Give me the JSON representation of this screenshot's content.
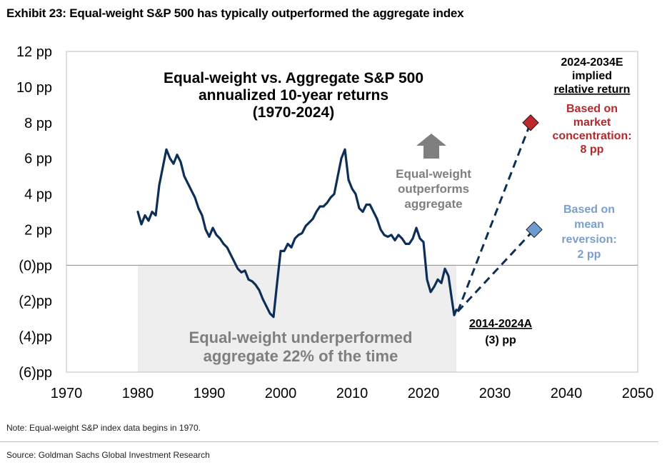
{
  "exhibit_title": "Exhibit 23: Equal-weight S&P 500 has typically outperformed the aggregate index",
  "note": "Note: Equal-weight S&P index data begins in 1970.",
  "source": "Source: Goldman Sachs Global Investment Research",
  "colors": {
    "line": "#0d2f57",
    "underperf_shade": "#eeeeee",
    "market_diamond": "#c0282d",
    "market_text": "#b02a2e",
    "mean_diamond": "#6f9bd1",
    "mean_text": "#7a9fcc",
    "arrow": "#7f7f7f",
    "grey_text": "#7f7f7f"
  },
  "chart_data": {
    "type": "line",
    "title_lines": [
      "Equal-weight vs. Aggregate S&P 500",
      "annualized 10-year returns",
      "(1970-2024)"
    ],
    "xlim": [
      1970,
      2050
    ],
    "ylim": [
      -6,
      12
    ],
    "x_ticks": [
      1970,
      1980,
      1990,
      2000,
      2010,
      2020,
      2030,
      2040,
      2050
    ],
    "y_ticks": [
      {
        "value": 12,
        "label": "12 pp"
      },
      {
        "value": 10,
        "label": "10 pp"
      },
      {
        "value": 8,
        "label": "8 pp"
      },
      {
        "value": 6,
        "label": "6 pp"
      },
      {
        "value": 4,
        "label": "4 pp"
      },
      {
        "value": 2,
        "label": "2 pp"
      },
      {
        "value": 0,
        "label": "(0)pp"
      },
      {
        "value": -2,
        "label": "(2)pp"
      },
      {
        "value": -4,
        "label": "(4)pp"
      },
      {
        "value": -6,
        "label": "(6)pp"
      }
    ],
    "series": [
      {
        "x": [
          1980.0,
          1980.5,
          1981.0,
          1981.5,
          1982.0,
          1982.5,
          1983.0,
          1983.5,
          1984.0,
          1984.5,
          1985.0,
          1985.5,
          1986.0,
          1986.5,
          1987.0,
          1987.5,
          1988.0,
          1988.5,
          1989.0,
          1989.5,
          1990.0,
          1990.5,
          1991.0,
          1991.5,
          1992.0,
          1992.5,
          1993.0,
          1993.5,
          1994.0,
          1994.5,
          1995.0,
          1995.5,
          1996.0,
          1996.5,
          1997.0,
          1997.5,
          1998.0,
          1998.5,
          1999.0,
          1999.5,
          2000.0,
          2000.5,
          2001.0,
          2001.5,
          2002.0,
          2002.5,
          2003.0,
          2003.5,
          2004.0,
          2004.5,
          2005.0,
          2005.5,
          2006.0,
          2006.5,
          2007.0,
          2007.5,
          2008.0,
          2008.5,
          2009.0,
          2009.5,
          2010.0,
          2010.5,
          2011.0,
          2011.5,
          2012.0,
          2012.5,
          2013.0,
          2013.5,
          2014.0,
          2014.5,
          2015.0,
          2015.5,
          2016.0,
          2016.5,
          2017.0,
          2017.5,
          2018.0,
          2018.5,
          2019.0,
          2019.5,
          2020.0,
          2020.5,
          2021.0,
          2021.5,
          2022.0,
          2022.5,
          2023.0,
          2023.5,
          2024.0,
          2024.3,
          2024.6
        ],
        "y": [
          3.0,
          2.3,
          2.8,
          2.5,
          3.0,
          2.8,
          4.5,
          5.5,
          6.5,
          6.0,
          5.7,
          6.2,
          5.8,
          5.0,
          4.6,
          4.2,
          3.8,
          3.2,
          2.8,
          2.0,
          1.6,
          2.1,
          1.7,
          1.5,
          1.2,
          1.0,
          0.6,
          0.2,
          -0.2,
          -0.4,
          -0.3,
          -0.8,
          -0.9,
          -1.1,
          -1.4,
          -1.9,
          -2.3,
          -2.7,
          -2.9,
          -1.0,
          0.8,
          0.8,
          1.2,
          1.0,
          1.5,
          1.7,
          1.8,
          2.2,
          2.4,
          2.6,
          3.0,
          3.3,
          3.3,
          3.5,
          3.8,
          4.0,
          5.0,
          6.0,
          6.5,
          4.8,
          4.3,
          4.0,
          3.2,
          3.0,
          3.4,
          3.4,
          3.0,
          2.6,
          2.0,
          1.7,
          1.6,
          1.7,
          1.4,
          1.7,
          1.5,
          1.2,
          1.2,
          1.5,
          2.1,
          1.5,
          1.3,
          -0.8,
          -1.5,
          -1.2,
          -0.8,
          -1.0,
          -0.2,
          -0.6,
          -2.0,
          -2.8,
          -2.5
        ]
      }
    ],
    "projections": [
      {
        "from_x": 2024.8,
        "from_y": -2.6,
        "x": 2035,
        "y": 8,
        "label_lines": [
          "Based on",
          "market",
          "concentration:",
          "8 pp"
        ]
      },
      {
        "from_x": 2024.8,
        "from_y": -2.6,
        "x": 2035.5,
        "y": 2,
        "label_lines": [
          "Based on",
          "mean",
          "reversion:",
          "2 pp"
        ]
      }
    ],
    "shaded_region": {
      "x": [
        1980,
        2024.6
      ],
      "y": [
        -6,
        0
      ],
      "label_lines": [
        "Equal-weight underperformed",
        "aggregate 22% of the time"
      ]
    },
    "outperform_label_lines": [
      "Equal-weight",
      "outperforms",
      "aggregate"
    ],
    "actual_label_lines": [
      "2014-2024A",
      "(3) pp"
    ],
    "estimate_header_lines": [
      "2024-2034E",
      "implied",
      "relative return"
    ]
  }
}
